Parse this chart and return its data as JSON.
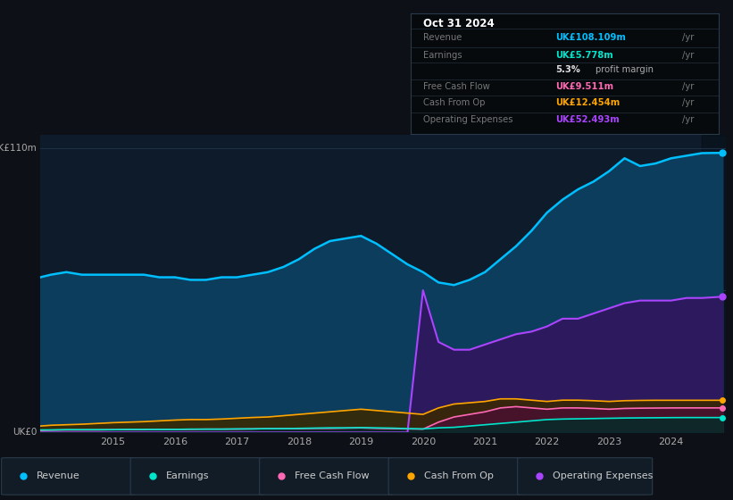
{
  "bg_color": "#0d1117",
  "chart_bg": "#0d1b2a",
  "grid_color": "#1e3048",
  "years": [
    2013.83,
    2014.0,
    2014.25,
    2014.5,
    2014.75,
    2015.0,
    2015.25,
    2015.5,
    2015.75,
    2016.0,
    2016.25,
    2016.5,
    2016.75,
    2017.0,
    2017.25,
    2017.5,
    2017.75,
    2018.0,
    2018.25,
    2018.5,
    2018.75,
    2019.0,
    2019.25,
    2019.5,
    2019.75,
    2020.0,
    2020.25,
    2020.5,
    2020.75,
    2021.0,
    2021.25,
    2021.5,
    2021.75,
    2022.0,
    2022.25,
    2022.5,
    2022.75,
    2023.0,
    2023.25,
    2023.5,
    2023.75,
    2024.0,
    2024.25,
    2024.5,
    2024.83
  ],
  "revenue": [
    60,
    61,
    62,
    61,
    61,
    61,
    61,
    61,
    60,
    60,
    59,
    59,
    60,
    60,
    61,
    62,
    64,
    67,
    71,
    74,
    75,
    76,
    73,
    69,
    65,
    62,
    58,
    57,
    59,
    62,
    67,
    72,
    78,
    85,
    90,
    94,
    97,
    101,
    106,
    103,
    104,
    106,
    107,
    108,
    108.1
  ],
  "operating_expenses": [
    0,
    0,
    0,
    0,
    0,
    0,
    0,
    0,
    0,
    0,
    0,
    0,
    0,
    0,
    0,
    0,
    0,
    0,
    0,
    0,
    0,
    0,
    0,
    0,
    0,
    55,
    35,
    32,
    32,
    34,
    36,
    38,
    39,
    41,
    44,
    44,
    46,
    48,
    50,
    51,
    51,
    51,
    52,
    52,
    52.5
  ],
  "earnings": [
    1.0,
    1.0,
    1.1,
    1.1,
    1.1,
    1.1,
    1.2,
    1.2,
    1.2,
    1.2,
    1.3,
    1.3,
    1.3,
    1.4,
    1.4,
    1.5,
    1.5,
    1.6,
    1.7,
    1.8,
    1.8,
    1.9,
    1.8,
    1.7,
    1.5,
    1.4,
    1.8,
    2.0,
    2.5,
    3.0,
    3.5,
    4.0,
    4.5,
    5.0,
    5.2,
    5.3,
    5.4,
    5.5,
    5.6,
    5.65,
    5.7,
    5.75,
    5.778,
    5.778,
    5.778
  ],
  "free_cash_flow": [
    0.8,
    0.9,
    1.0,
    1.0,
    1.0,
    1.1,
    1.1,
    1.1,
    1.2,
    1.2,
    1.2,
    1.3,
    1.3,
    1.3,
    1.4,
    1.5,
    1.5,
    1.5,
    1.6,
    1.6,
    1.7,
    1.8,
    1.6,
    1.5,
    1.4,
    1.3,
    4.0,
    6.0,
    7.0,
    8.0,
    9.5,
    10.0,
    9.5,
    9.0,
    9.5,
    9.5,
    9.3,
    9.0,
    9.3,
    9.4,
    9.45,
    9.5,
    9.511,
    9.511,
    9.511
  ],
  "cash_from_op": [
    2.5,
    2.8,
    3.0,
    3.2,
    3.5,
    3.8,
    4.0,
    4.2,
    4.5,
    4.8,
    5.0,
    5.0,
    5.2,
    5.5,
    5.8,
    6.0,
    6.5,
    7.0,
    7.5,
    8.0,
    8.5,
    9.0,
    8.5,
    8.0,
    7.5,
    7.0,
    9.5,
    11.0,
    11.5,
    12.0,
    13.0,
    13.0,
    12.5,
    12.0,
    12.5,
    12.5,
    12.3,
    12.0,
    12.3,
    12.4,
    12.454,
    12.454,
    12.454,
    12.454,
    12.454
  ],
  "revenue_color": "#00bfff",
  "operating_expenses_color": "#aa44ff",
  "earnings_color": "#00e5cc",
  "free_cash_flow_color": "#ff69b4",
  "cash_from_op_color": "#ffa500",
  "ylim": [
    0,
    115
  ],
  "xlabel_ticks": [
    2015,
    2016,
    2017,
    2018,
    2019,
    2020,
    2021,
    2022,
    2023,
    2024
  ],
  "legend_items": [
    {
      "label": "Revenue",
      "color": "#00bfff"
    },
    {
      "label": "Earnings",
      "color": "#00e5cc"
    },
    {
      "label": "Free Cash Flow",
      "color": "#ff69b4"
    },
    {
      "label": "Cash From Op",
      "color": "#ffa500"
    },
    {
      "label": "Operating Expenses",
      "color": "#aa44ff"
    }
  ]
}
